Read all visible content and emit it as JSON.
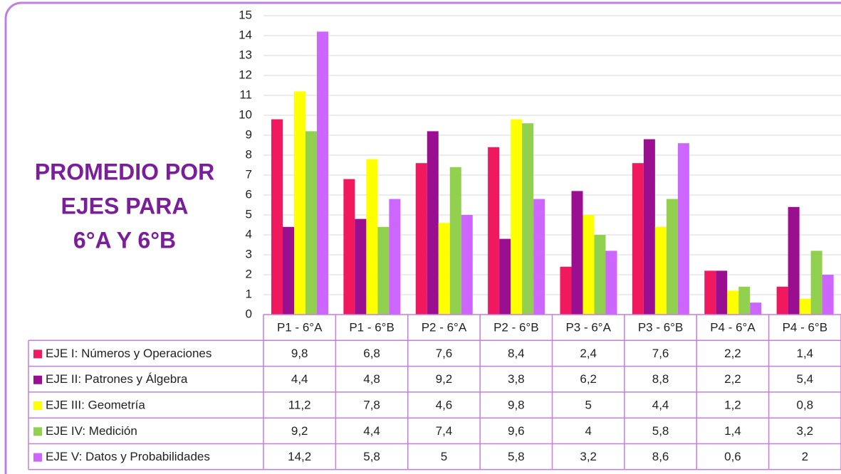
{
  "chart_data": {
    "type": "bar",
    "title_lines": [
      "PROMEDIO POR",
      "EJES PARA",
      "6°A Y 6°B"
    ],
    "categories": [
      "P1 - 6°A",
      "P1 - 6°B",
      "P2 - 6°A",
      "P2 - 6°B",
      "P3 - 6°A",
      "P3 - 6°B",
      "P4 - 6°A",
      "P4 - 6°B"
    ],
    "series": [
      {
        "name": "EJE I:  Números y Operaciones",
        "color": "#f0195f",
        "values": [
          9.8,
          6.8,
          7.6,
          8.4,
          2.4,
          7.6,
          2.2,
          1.4
        ],
        "value_labels": [
          "9,8",
          "6,8",
          "7,6",
          "8,4",
          "2,4",
          "7,6",
          "2,2",
          "1,4"
        ]
      },
      {
        "name": "EJE II: Patrones y Álgebra",
        "color": "#990f8f",
        "values": [
          4.4,
          4.8,
          9.2,
          3.8,
          6.2,
          8.8,
          2.2,
          5.4
        ],
        "value_labels": [
          "4,4",
          "4,8",
          "9,2",
          "3,8",
          "6,2",
          "8,8",
          "2,2",
          "5,4"
        ]
      },
      {
        "name": "EJE III: Geometría",
        "color": "#ffff00",
        "values": [
          11.2,
          7.8,
          4.6,
          9.8,
          5,
          4.4,
          1.2,
          0.8
        ],
        "value_labels": [
          "11,2",
          "7,8",
          "4,6",
          "9,8",
          "5",
          "4,4",
          "1,2",
          "0,8"
        ]
      },
      {
        "name": "EJE IV: Medición",
        "color": "#92d050",
        "values": [
          9.2,
          4.4,
          7.4,
          9.6,
          4,
          5.8,
          1.4,
          3.2
        ],
        "value_labels": [
          "9,2",
          "4,4",
          "7,4",
          "9,6",
          "4",
          "5,8",
          "1,4",
          "3,2"
        ]
      },
      {
        "name": "EJE V: Datos y Probabilidades",
        "color": "#cc66ff",
        "values": [
          14.2,
          5.8,
          5,
          5.8,
          3.2,
          8.6,
          0.6,
          2
        ],
        "value_labels": [
          "14,2",
          "5,8",
          "5",
          "5,8",
          "3,2",
          "8,6",
          "0,6",
          "2"
        ]
      }
    ],
    "ylim": [
      0,
      15
    ],
    "yticks": [
      0,
      1,
      2,
      3,
      4,
      5,
      6,
      7,
      8,
      9,
      10,
      11,
      12,
      13,
      14,
      15
    ],
    "grid": true
  }
}
